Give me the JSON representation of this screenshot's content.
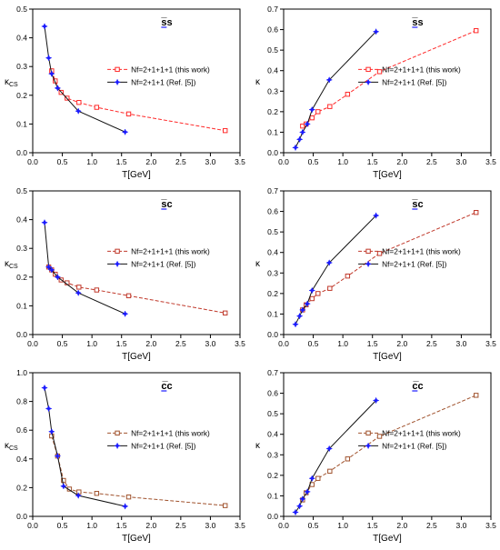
{
  "chart_data": [
    {
      "type": "line",
      "title": "s̅s",
      "xlabel": "T[GeV]",
      "ylabel": "κCS",
      "xlim": [
        0,
        3.5
      ],
      "ylim": [
        0,
        0.5
      ],
      "xticks": [
        "0.0",
        "0.5",
        "1.0",
        "1.5",
        "2.0",
        "2.5",
        "3.0",
        "3.5"
      ],
      "yticks": [
        "0.0",
        "0.1",
        "0.2",
        "0.3",
        "0.4",
        "0.5"
      ],
      "legend_position": "center-right",
      "series": [
        {
          "name": "Nf=2+1+1+1 (this work)",
          "color": "#ff2a2a",
          "marker": "square",
          "dashed": true,
          "x": [
            0.32,
            0.38,
            0.48,
            0.58,
            0.78,
            1.08,
            1.62,
            3.25
          ],
          "y": [
            0.285,
            0.25,
            0.21,
            0.19,
            0.175,
            0.158,
            0.135,
            0.077
          ]
        },
        {
          "name": "Nf=2+1+1 (Ref. [5])",
          "color": "#1a1aff",
          "marker": "star",
          "dashed": false,
          "x": [
            0.2,
            0.27,
            0.32,
            0.42,
            0.77,
            1.56
          ],
          "y": [
            0.44,
            0.33,
            0.275,
            0.225,
            0.145,
            0.072
          ]
        }
      ]
    },
    {
      "type": "line",
      "title": "s̅s",
      "xlabel": "T[GeV]",
      "ylabel": "κ",
      "xlim": [
        0,
        3.5
      ],
      "ylim": [
        0,
        0.7
      ],
      "xticks": [
        "0.0",
        "0.5",
        "1.0",
        "1.5",
        "2.0",
        "2.5",
        "3.0",
        "3.5"
      ],
      "yticks": [
        "0.0",
        "0.1",
        "0.2",
        "0.3",
        "0.4",
        "0.5",
        "0.6",
        "0.7"
      ],
      "legend_position": "center-right",
      "series": [
        {
          "name": "Nf=2+1+1+1 (this work)",
          "color": "#ff2a2a",
          "marker": "square",
          "dashed": true,
          "x": [
            0.32,
            0.38,
            0.48,
            0.58,
            0.78,
            1.08,
            1.62,
            3.25
          ],
          "y": [
            0.13,
            0.14,
            0.17,
            0.2,
            0.225,
            0.285,
            0.395,
            0.595
          ]
        },
        {
          "name": "Nf=2+1+1 (Ref. [5])",
          "color": "#1a1aff",
          "marker": "star",
          "dashed": false,
          "x": [
            0.2,
            0.27,
            0.32,
            0.4,
            0.48,
            0.77,
            1.56
          ],
          "y": [
            0.025,
            0.065,
            0.1,
            0.14,
            0.21,
            0.355,
            0.59
          ]
        }
      ]
    },
    {
      "type": "line",
      "title": "s̅c",
      "xlabel": "T[GeV]",
      "ylabel": "κCS",
      "xlim": [
        0,
        3.5
      ],
      "ylim": [
        0,
        0.5
      ],
      "xticks": [
        "0.0",
        "0.5",
        "1.0",
        "1.5",
        "2.0",
        "2.5",
        "3.0",
        "3.5"
      ],
      "yticks": [
        "0.0",
        "0.1",
        "0.2",
        "0.3",
        "0.4",
        "0.5"
      ],
      "legend_position": "center-right",
      "series": [
        {
          "name": "Nf=2+1+1+1 (this work)",
          "color": "#c0392b",
          "marker": "square",
          "dashed": true,
          "x": [
            0.27,
            0.32,
            0.38,
            0.48,
            0.58,
            0.78,
            1.08,
            1.62,
            3.25
          ],
          "y": [
            0.235,
            0.225,
            0.21,
            0.19,
            0.18,
            0.165,
            0.155,
            0.135,
            0.075
          ]
        },
        {
          "name": "Nf=2+1+1 (Ref. [5])",
          "color": "#1a1aff",
          "marker": "star",
          "dashed": false,
          "x": [
            0.2,
            0.27,
            0.32,
            0.42,
            0.77,
            1.56
          ],
          "y": [
            0.39,
            0.235,
            0.225,
            0.2,
            0.145,
            0.072
          ]
        }
      ]
    },
    {
      "type": "line",
      "title": "s̅c",
      "xlabel": "T[GeV]",
      "ylabel": "κ",
      "xlim": [
        0,
        3.5
      ],
      "ylim": [
        0,
        0.7
      ],
      "xticks": [
        "0.0",
        "0.5",
        "1.0",
        "1.5",
        "2.0",
        "2.5",
        "3.0",
        "3.5"
      ],
      "yticks": [
        "0.0",
        "0.1",
        "0.2",
        "0.3",
        "0.4",
        "0.5",
        "0.6",
        "0.7"
      ],
      "legend_position": "center-right",
      "series": [
        {
          "name": "Nf=2+1+1+1 (this work)",
          "color": "#c0392b",
          "marker": "square",
          "dashed": true,
          "x": [
            0.32,
            0.38,
            0.48,
            0.58,
            0.78,
            1.08,
            1.62,
            3.25
          ],
          "y": [
            0.12,
            0.145,
            0.175,
            0.2,
            0.225,
            0.285,
            0.395,
            0.595
          ]
        },
        {
          "name": "Nf=2+1+1 (Ref. [5])",
          "color": "#1a1aff",
          "marker": "star",
          "dashed": false,
          "x": [
            0.2,
            0.27,
            0.32,
            0.4,
            0.48,
            0.77,
            1.56
          ],
          "y": [
            0.05,
            0.09,
            0.12,
            0.15,
            0.215,
            0.35,
            0.58
          ]
        }
      ]
    },
    {
      "type": "line",
      "title": "c̅c",
      "xlabel": "T[GeV]",
      "ylabel": "κCS",
      "xlim": [
        0,
        3.5
      ],
      "ylim": [
        0,
        1.0
      ],
      "xticks": [
        "0.0",
        "0.5",
        "1.0",
        "1.5",
        "2.0",
        "2.5",
        "3.0",
        "3.5"
      ],
      "yticks": [
        "0.0",
        "0.2",
        "0.4",
        "0.6",
        "0.8",
        "1.0"
      ],
      "legend_position": "center-right",
      "series": [
        {
          "name": "Nf=2+1+1+1 (this work)",
          "color": "#a0522d",
          "marker": "square",
          "dashed": true,
          "x": [
            0.32,
            0.42,
            0.52,
            0.62,
            0.78,
            1.08,
            1.62,
            3.25
          ],
          "y": [
            0.56,
            0.42,
            0.25,
            0.19,
            0.17,
            0.16,
            0.135,
            0.075
          ]
        },
        {
          "name": "Nf=2+1+1 (Ref. [5])",
          "color": "#1a1aff",
          "marker": "star",
          "dashed": false,
          "x": [
            0.2,
            0.27,
            0.32,
            0.42,
            0.52,
            0.77,
            1.56
          ],
          "y": [
            0.895,
            0.75,
            0.59,
            0.42,
            0.21,
            0.145,
            0.07
          ]
        }
      ]
    },
    {
      "type": "line",
      "title": "c̅c",
      "xlabel": "T[GeV]",
      "ylabel": "κ",
      "xlim": [
        0,
        3.5
      ],
      "ylim": [
        0,
        0.7
      ],
      "xticks": [
        "0.0",
        "0.5",
        "1.0",
        "1.5",
        "2.0",
        "2.5",
        "3.0",
        "3.5"
      ],
      "yticks": [
        "0.0",
        "0.1",
        "0.2",
        "0.3",
        "0.4",
        "0.5",
        "0.6",
        "0.7"
      ],
      "legend_position": "center-right",
      "series": [
        {
          "name": "Nf=2+1+1+1 (this work)",
          "color": "#a0522d",
          "marker": "square",
          "dashed": true,
          "x": [
            0.32,
            0.38,
            0.48,
            0.58,
            0.78,
            1.08,
            1.62,
            3.25
          ],
          "y": [
            0.08,
            0.115,
            0.155,
            0.185,
            0.22,
            0.28,
            0.39,
            0.59
          ]
        },
        {
          "name": "Nf=2+1+1 (Ref. [5])",
          "color": "#1a1aff",
          "marker": "star",
          "dashed": false,
          "x": [
            0.2,
            0.27,
            0.32,
            0.4,
            0.48,
            0.77,
            1.56
          ],
          "y": [
            0.02,
            0.05,
            0.085,
            0.12,
            0.185,
            0.33,
            0.565
          ]
        }
      ]
    }
  ]
}
